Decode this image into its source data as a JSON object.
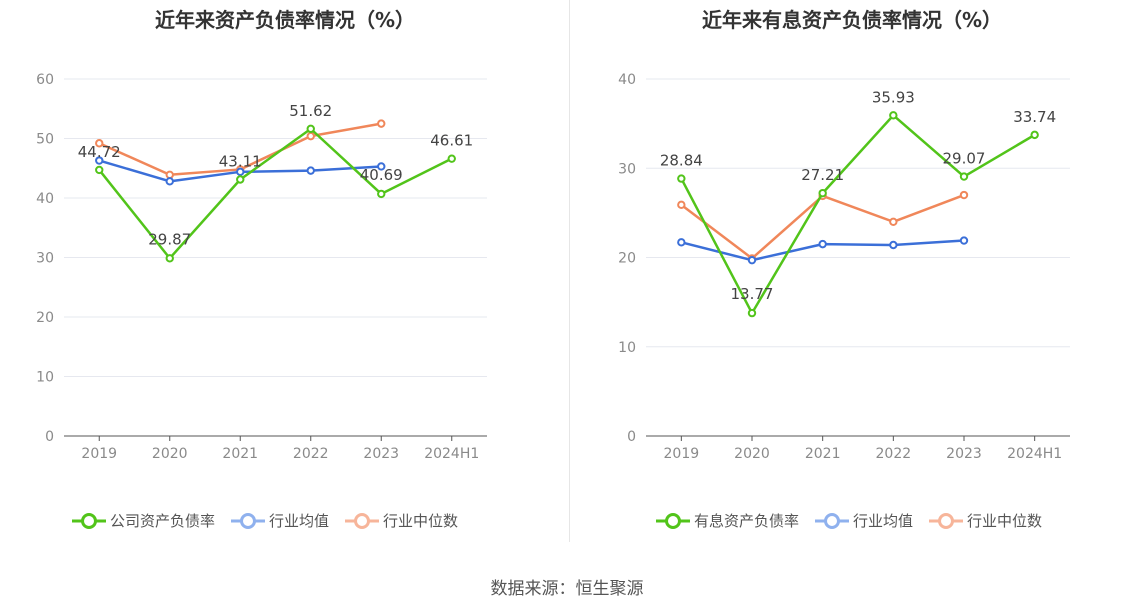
{
  "source_label": "数据来源：恒生聚源",
  "colors": {
    "company": "#52c41a",
    "average": "#3b6fd8",
    "median": "#f0875a"
  },
  "chart_data": [
    {
      "type": "line",
      "title": "近年来资产负债率情况（%）",
      "categories": [
        "2019",
        "2020",
        "2021",
        "2022",
        "2023",
        "2024H1"
      ],
      "yticks": [
        "0",
        "10",
        "20",
        "30",
        "40",
        "50",
        "60"
      ],
      "ylim": [
        0,
        60
      ],
      "grid": true,
      "legend_position": "bottom",
      "series": [
        {
          "name": "公司资产负债率",
          "key": "company",
          "values": [
            44.72,
            29.87,
            43.11,
            51.62,
            40.69,
            46.61
          ],
          "labels": [
            "44.72",
            "29.87",
            "43.11",
            "51.62",
            "40.69",
            "46.61"
          ]
        },
        {
          "name": "行业均值",
          "key": "average",
          "values": [
            46.3,
            42.8,
            44.4,
            44.6,
            45.3,
            null
          ]
        },
        {
          "name": "行业中位数",
          "key": "median",
          "values": [
            49.2,
            43.9,
            44.8,
            50.4,
            52.5,
            null
          ]
        }
      ]
    },
    {
      "type": "line",
      "title": "近年来有息资产负债率情况（%）",
      "categories": [
        "2019",
        "2020",
        "2021",
        "2022",
        "2023",
        "2024H1"
      ],
      "yticks": [
        "0",
        "10",
        "20",
        "30",
        "40"
      ],
      "ylim": [
        0,
        40
      ],
      "grid": true,
      "legend_position": "bottom",
      "series": [
        {
          "name": "有息资产负债率",
          "key": "company",
          "values": [
            28.84,
            13.77,
            27.21,
            35.93,
            29.07,
            33.74
          ],
          "labels": [
            "28.84",
            "13.77",
            "27.21",
            "35.93",
            "29.07",
            "33.74"
          ]
        },
        {
          "name": "行业均值",
          "key": "average",
          "values": [
            21.7,
            19.7,
            21.5,
            21.4,
            21.9,
            null
          ]
        },
        {
          "name": "行业中位数",
          "key": "median",
          "values": [
            25.9,
            19.9,
            26.9,
            24.0,
            27.0,
            null
          ]
        }
      ]
    }
  ]
}
